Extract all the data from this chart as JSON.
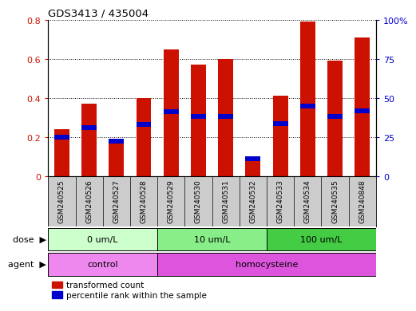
{
  "title": "GDS3413 / 435004",
  "samples": [
    "GSM240525",
    "GSM240526",
    "GSM240527",
    "GSM240528",
    "GSM240529",
    "GSM240530",
    "GSM240531",
    "GSM240532",
    "GSM240533",
    "GSM240534",
    "GSM240535",
    "GSM240848"
  ],
  "transformed_count": [
    0.24,
    0.37,
    0.17,
    0.4,
    0.65,
    0.57,
    0.6,
    0.09,
    0.41,
    0.79,
    0.59,
    0.71
  ],
  "percentile_rank": [
    0.2,
    0.25,
    0.18,
    0.265,
    0.33,
    0.305,
    0.305,
    0.09,
    0.27,
    0.36,
    0.305,
    0.335
  ],
  "bar_color": "#cc1100",
  "percentile_color": "#0000cc",
  "ylim_left": [
    0,
    0.8
  ],
  "ylim_right": [
    0,
    100
  ],
  "yticks_left": [
    0,
    0.2,
    0.4,
    0.6,
    0.8
  ],
  "yticks_right": [
    0,
    25,
    50,
    75,
    100
  ],
  "ytick_labels_left": [
    "0",
    "0.2",
    "0.4",
    "0.6",
    "0.8"
  ],
  "ytick_labels_right": [
    "0",
    "25",
    "50",
    "75",
    "100%"
  ],
  "dose_groups": [
    {
      "label": "0 um/L",
      "start": 0,
      "end": 4,
      "color": "#ccffcc"
    },
    {
      "label": "10 um/L",
      "start": 4,
      "end": 8,
      "color": "#88ee88"
    },
    {
      "label": "100 um/L",
      "start": 8,
      "end": 12,
      "color": "#44cc44"
    }
  ],
  "agent_groups": [
    {
      "label": "control",
      "start": 0,
      "end": 4,
      "color": "#ee88ee"
    },
    {
      "label": "homocysteine",
      "start": 4,
      "end": 12,
      "color": "#dd55dd"
    }
  ],
  "dose_label": "dose",
  "agent_label": "agent",
  "legend_items": [
    {
      "label": "transformed count",
      "color": "#cc1100"
    },
    {
      "label": "percentile rank within the sample",
      "color": "#0000cc"
    }
  ],
  "bar_width": 0.55,
  "label_bg_color": "#cccccc",
  "bg_color": "#ffffff",
  "plot_bg_color": "#ffffff"
}
